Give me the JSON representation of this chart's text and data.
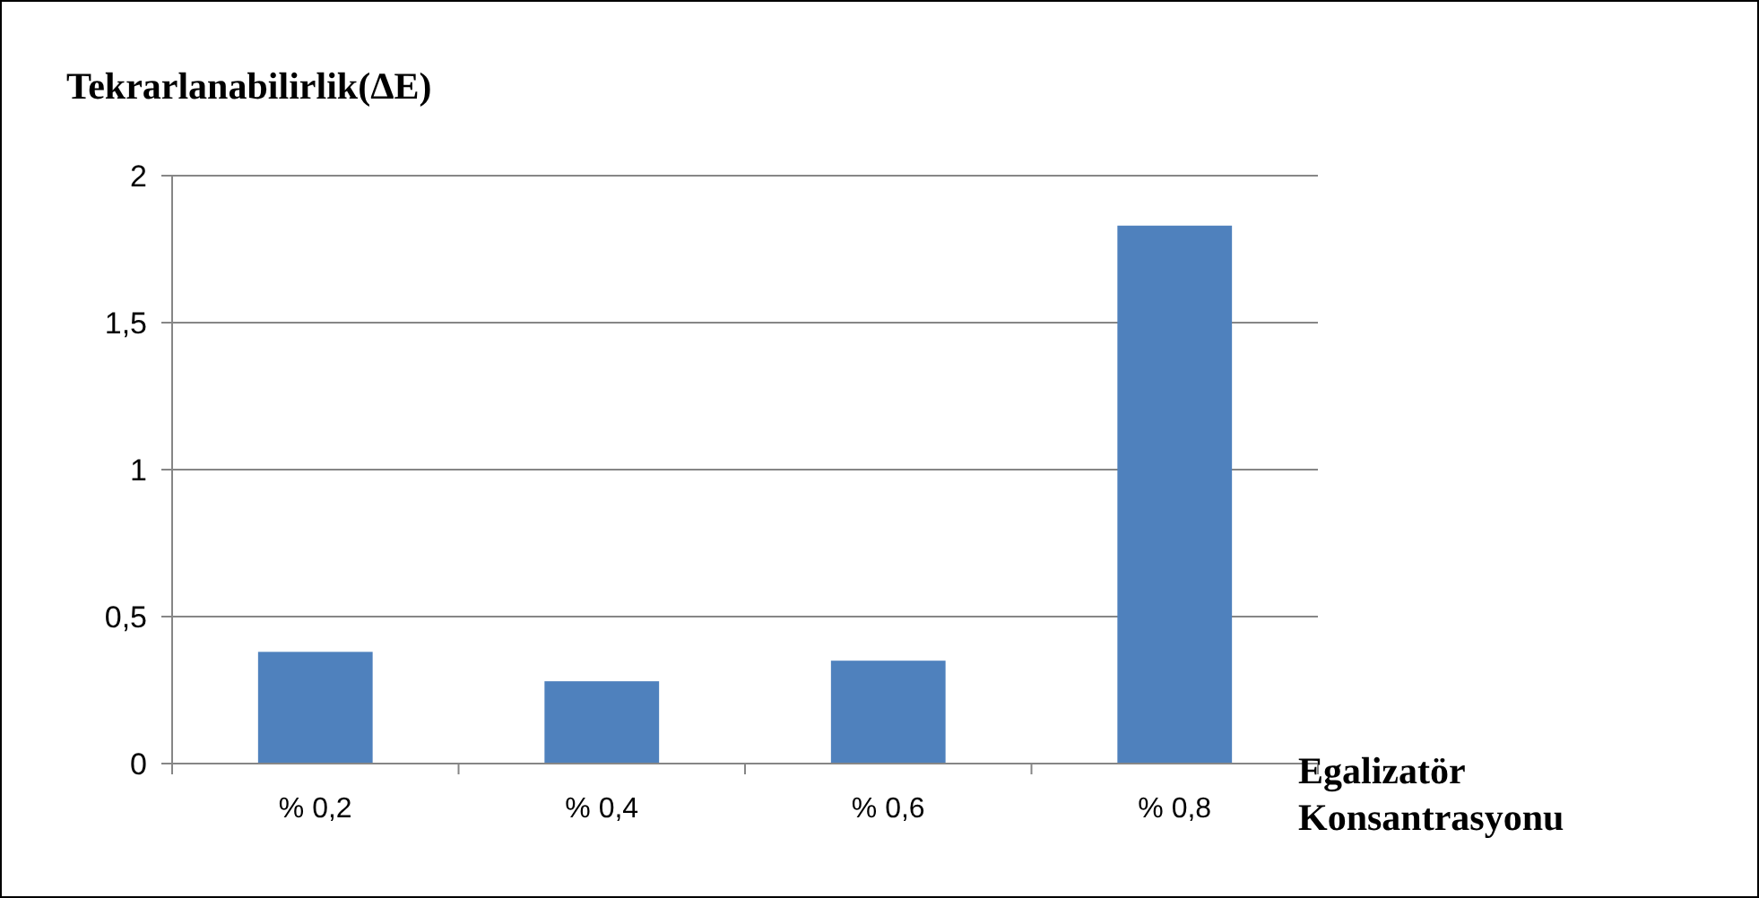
{
  "chart_data": {
    "type": "bar",
    "ylabel": "Tekrarlanabilirlik(ΔE)",
    "xlabel": "Egalizatör Konsantrasyonu",
    "categories": [
      "% 0,2",
      "% 0,4",
      "% 0,6",
      "% 0,8"
    ],
    "values": [
      0.38,
      0.28,
      0.35,
      1.83
    ],
    "color": "#4f81bd",
    "ylim": [
      0,
      2
    ],
    "yticks": [
      0,
      {
        "value": 0.5,
        "label": "0,5"
      },
      1,
      {
        "value": 1.5,
        "label": "1,5"
      },
      2
    ],
    "grid": "y"
  }
}
